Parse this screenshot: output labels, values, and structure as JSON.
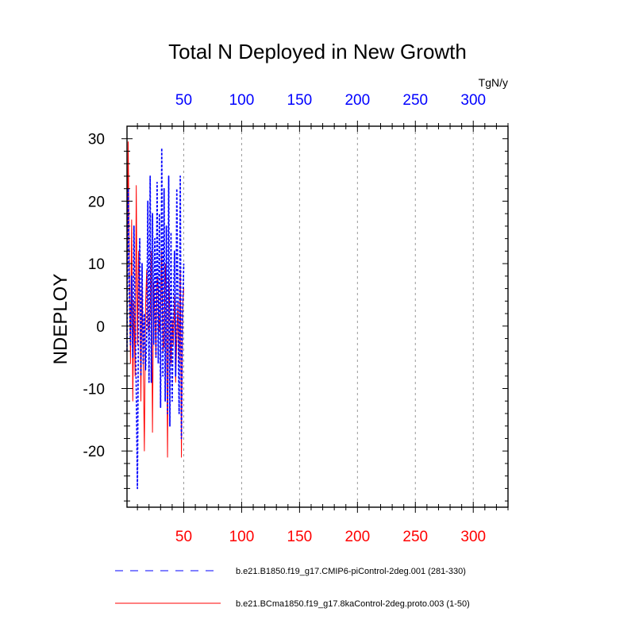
{
  "chart_data": {
    "type": "line",
    "title": "Total N Deployed in New Growth",
    "units": "TgN/y",
    "xlabel": "",
    "ylabel": "NDEPLOY",
    "xlim": [
      1,
      330
    ],
    "ylim": [
      -29,
      32
    ],
    "x_ticks": [
      50,
      100,
      150,
      200,
      250,
      300
    ],
    "x_tick_labels": [
      "50",
      "100",
      "150",
      "200",
      "250",
      "300"
    ],
    "y_ticks": [
      30,
      20,
      10,
      0,
      -10,
      -20
    ],
    "y_tick_labels": [
      "30",
      "20",
      "10",
      "0",
      "-10",
      "-20"
    ],
    "top_axis_color": "#0000ff",
    "bottom_axis_color": "#ff0000",
    "grid": "vertical dashed at x ticks",
    "legend_position": "bottom",
    "series": [
      {
        "name": "b.e21.B1850.f19_g17.CMIP6-piControl-2deg.001 (281-330)",
        "color": "#0000ff",
        "dash": "dashed",
        "x": [
          1,
          2,
          3,
          4,
          5,
          6,
          7,
          8,
          9,
          10,
          11,
          12,
          13,
          14,
          15,
          16,
          17,
          18,
          19,
          20,
          21,
          22,
          23,
          24,
          25,
          26,
          27,
          28,
          29,
          30,
          31,
          32,
          33,
          34,
          35,
          36,
          37,
          38,
          39,
          40,
          41,
          42,
          43,
          44,
          45,
          46,
          47,
          48,
          49,
          50
        ],
        "values": [
          -4,
          22,
          6,
          -3,
          8,
          -5,
          16,
          2,
          -10,
          -26,
          4,
          14,
          -8,
          10,
          -6,
          2,
          -7,
          -2,
          20,
          -9,
          24,
          -9,
          18,
          -3,
          14,
          -5,
          23,
          -6,
          18,
          -13,
          28.5,
          -8,
          22,
          -12,
          16,
          -14,
          24,
          -16,
          15,
          -12,
          2,
          12,
          -8,
          22,
          3,
          -14,
          24,
          -18,
          2,
          10
        ]
      },
      {
        "name": "b.e21.BCma1850.f19_g17.8kaControl-2deg.proto.003 (1-50)",
        "color": "#ff0000",
        "dash": "solid",
        "x": [
          1,
          2,
          3,
          4,
          5,
          6,
          7,
          8,
          9,
          10,
          11,
          12,
          13,
          14,
          15,
          16,
          17,
          18,
          19,
          20,
          21,
          22,
          23,
          24,
          25,
          26,
          27,
          28,
          29,
          30,
          31,
          32,
          33,
          34,
          35,
          36,
          37,
          38,
          39,
          40,
          41,
          42,
          43,
          44,
          45,
          46,
          47,
          48,
          49,
          50
        ],
        "values": [
          6,
          29.5,
          11,
          -6,
          17,
          -12,
          4,
          -8,
          22.5,
          -3,
          12,
          5,
          -12,
          8,
          -5,
          -20,
          3,
          9,
          0,
          -1,
          2,
          12,
          -17,
          7,
          2,
          -5,
          8,
          6,
          -1,
          2,
          12,
          -4,
          -3,
          10,
          5,
          -21,
          8,
          2,
          -6,
          1,
          -3,
          5,
          -9,
          -2,
          4,
          -6,
          9,
          -21,
          3,
          6
        ]
      }
    ]
  }
}
